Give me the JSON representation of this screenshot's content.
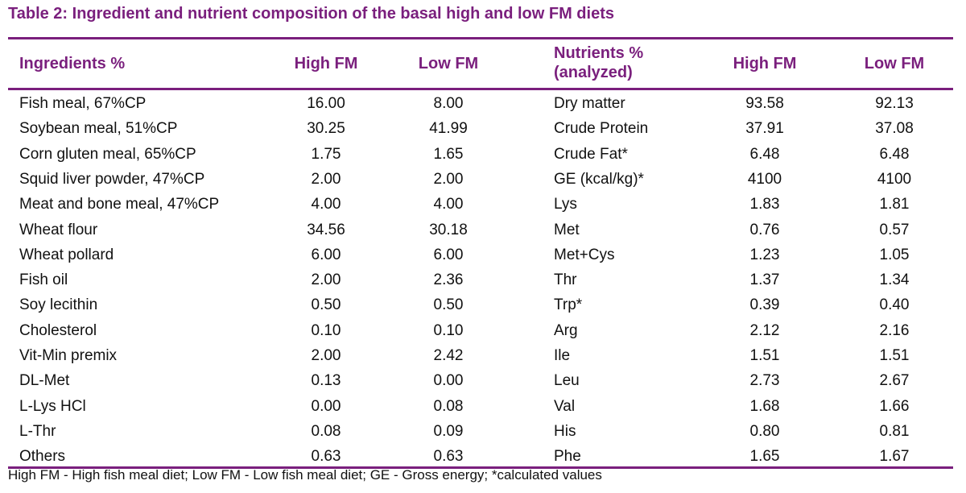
{
  "title": "Table 2: Ingredient and nutrient composition of the basal high and low FM diets",
  "headers": {
    "ingredients": "Ingredients %",
    "high_fm_1": "High FM",
    "low_fm_1": "Low FM",
    "nutrients_line1": "Nutrients %",
    "nutrients_line2": "(analyzed)",
    "high_fm_2": "High FM",
    "low_fm_2": "Low FM"
  },
  "rows": [
    [
      "Fish meal, 67%CP",
      "16.00",
      "8.00",
      "Dry matter",
      "93.58",
      "92.13"
    ],
    [
      "Soybean meal, 51%CP",
      "30.25",
      "41.99",
      "Crude Protein",
      "37.91",
      "37.08"
    ],
    [
      "Corn gluten meal, 65%CP",
      "1.75",
      "1.65",
      "Crude Fat*",
      "6.48",
      "6.48"
    ],
    [
      "Squid liver powder, 47%CP",
      "2.00",
      "2.00",
      "GE (kcal/kg)*",
      "4100",
      "4100"
    ],
    [
      "Meat and bone meal, 47%CP",
      "4.00",
      "4.00",
      "Lys",
      "1.83",
      "1.81"
    ],
    [
      "Wheat flour",
      "34.56",
      "30.18",
      "Met",
      "0.76",
      "0.57"
    ],
    [
      "Wheat pollard",
      "6.00",
      "6.00",
      "Met+Cys",
      "1.23",
      "1.05"
    ],
    [
      "Fish oil",
      "2.00",
      "2.36",
      "Thr",
      "1.37",
      "1.34"
    ],
    [
      "Soy lecithin",
      "0.50",
      "0.50",
      "Trp*",
      "0.39",
      "0.40"
    ],
    [
      "Cholesterol",
      "0.10",
      "0.10",
      "Arg",
      "2.12",
      "2.16"
    ],
    [
      "Vit-Min premix",
      "2.00",
      "2.42",
      " Ile",
      "1.51",
      "1.51"
    ],
    [
      "DL-Met",
      "0.13",
      "0.00",
      "Leu",
      "2.73",
      "2.67"
    ],
    [
      "L-Lys HCl",
      "0.00",
      "0.08",
      "Val",
      "1.68",
      "1.66"
    ],
    [
      "L-Thr",
      "0.08",
      "0.09",
      "His",
      "0.80",
      "0.81"
    ],
    [
      "Others",
      "0.63",
      "0.63",
      "Phe",
      "1.65",
      "1.67"
    ]
  ],
  "footnote": "High FM - High fish meal diet; Low FM - Low fish meal diet; GE - Gross energy; *calculated values",
  "colors": {
    "accent": "#7a1f7d"
  }
}
